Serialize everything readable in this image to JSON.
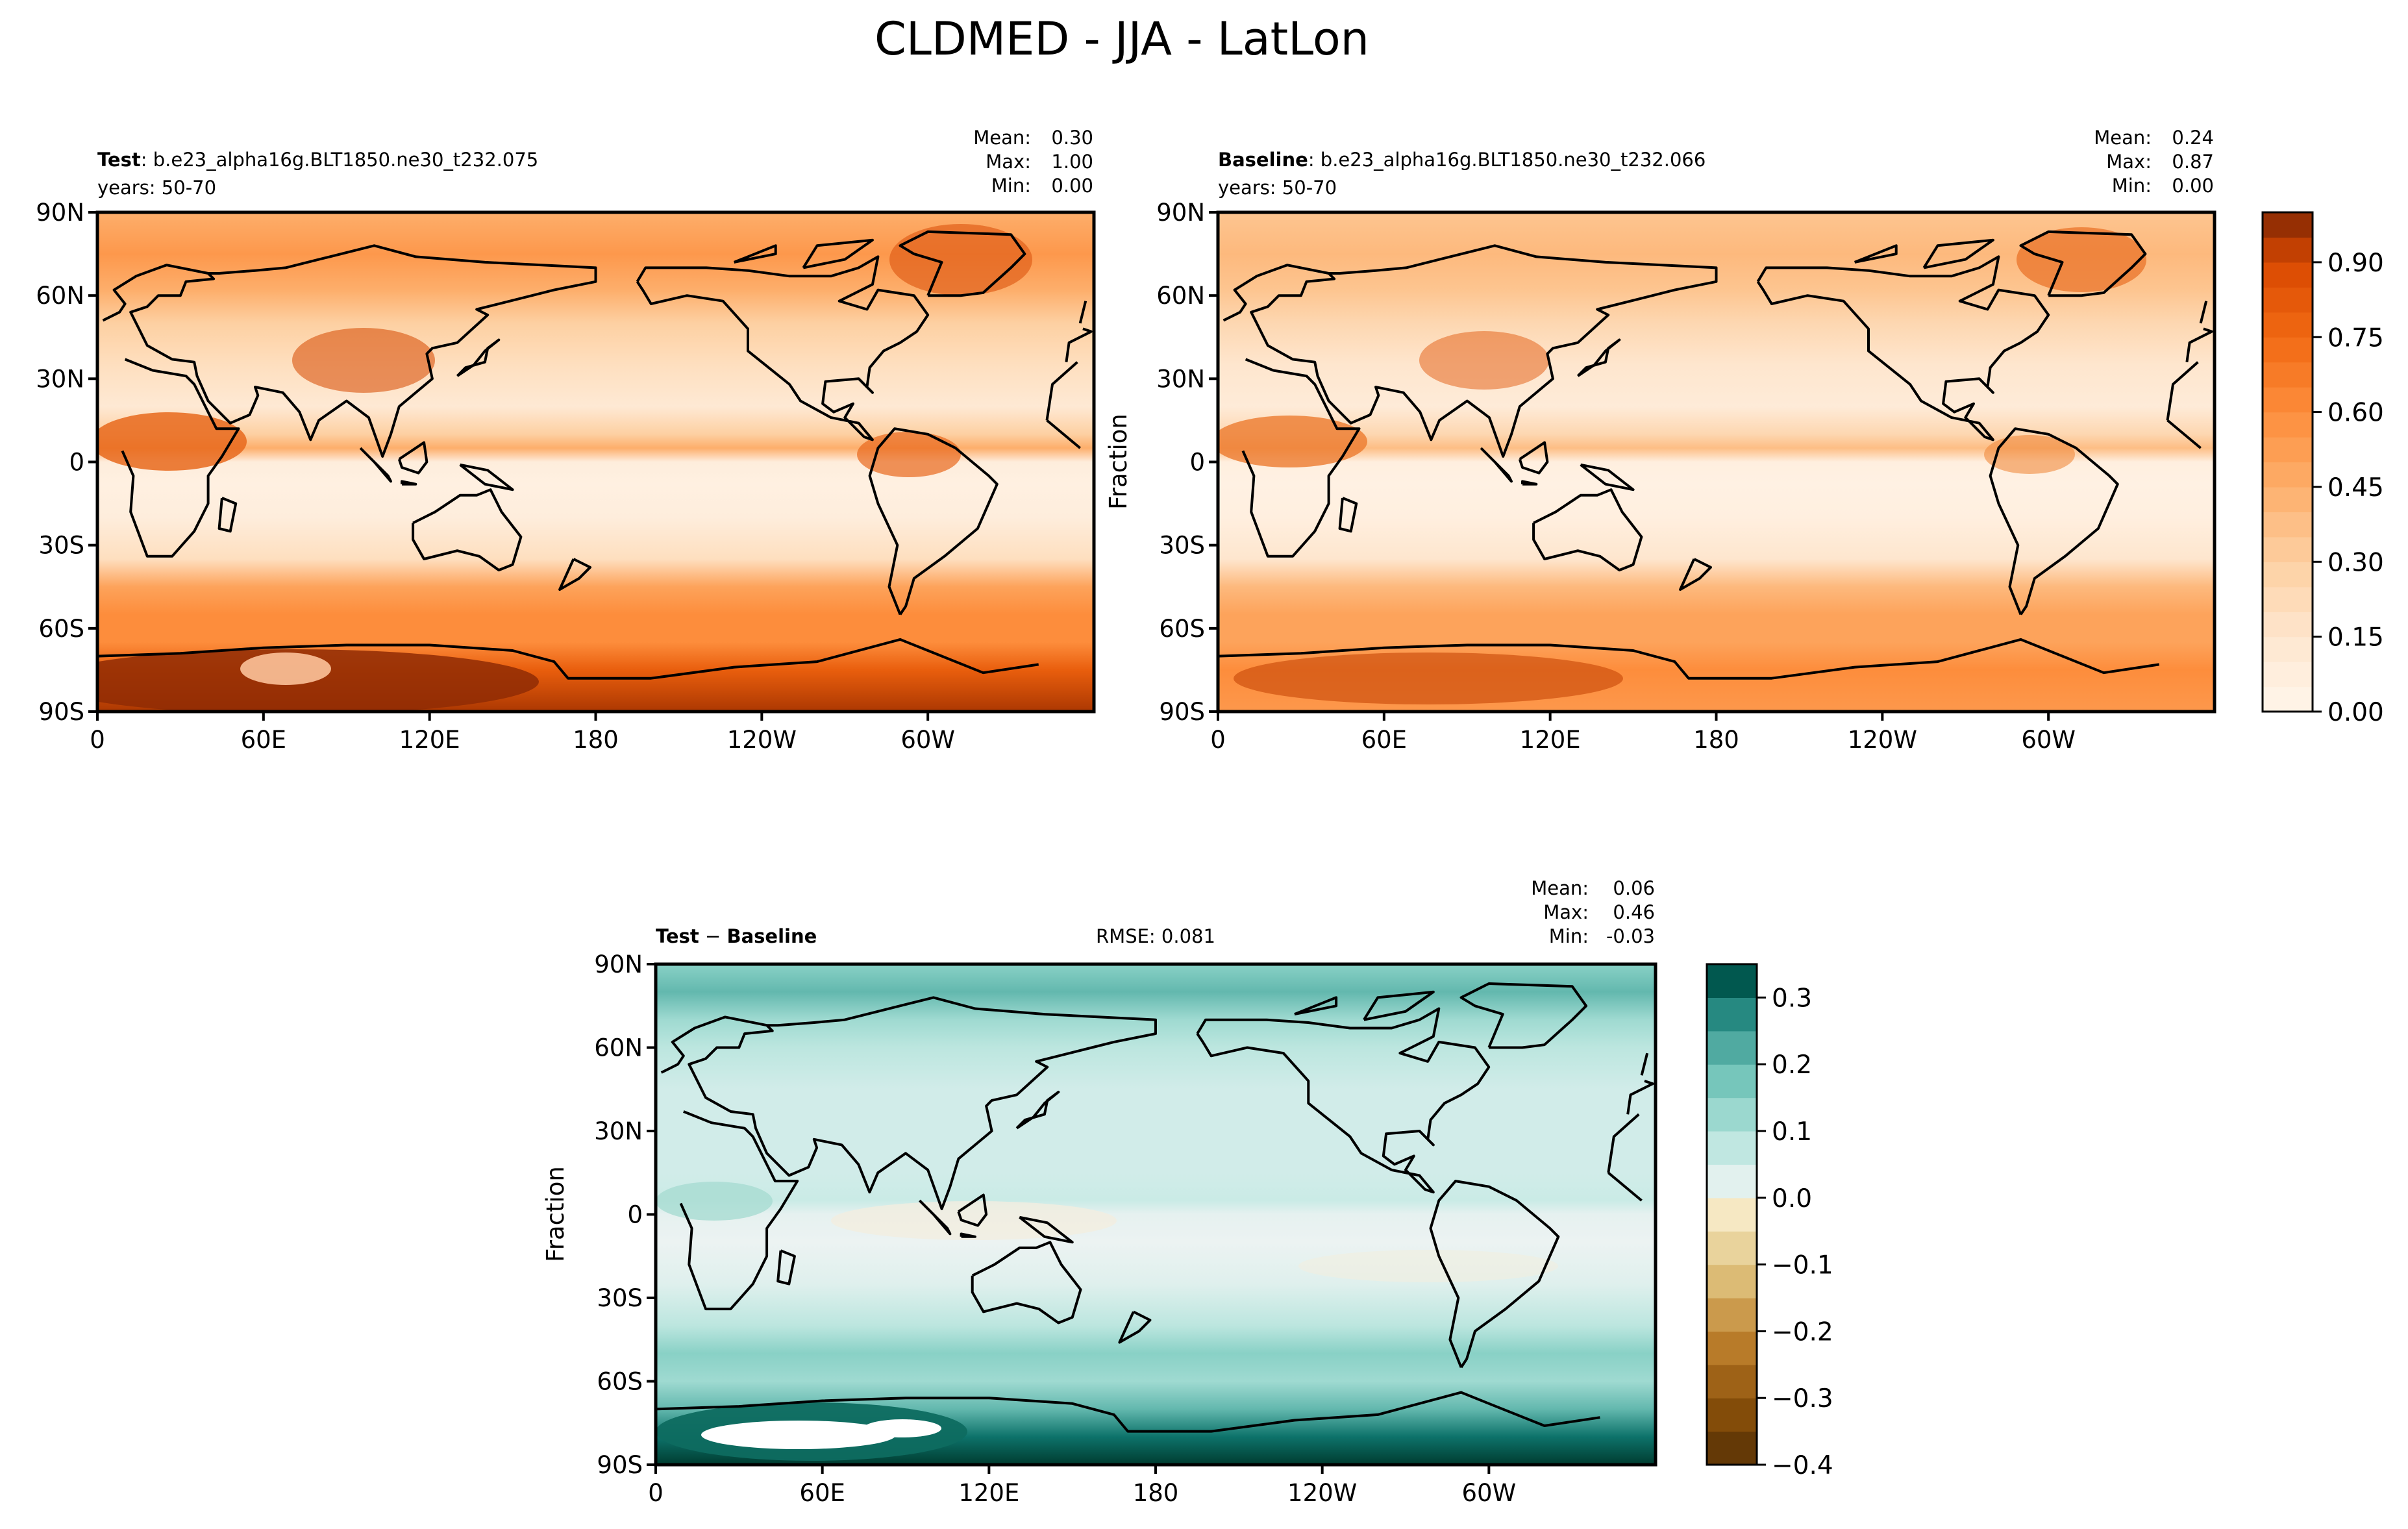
{
  "figure_title": "CLDMED - JJA - LatLon",
  "chart_data": [
    {
      "type": "heatmap",
      "id": "test",
      "label_bold": "Test",
      "label_rest": ": b.e23_alpha16g.BLT1850.ne30_t232.075",
      "years": "years: 50-70",
      "stats": [
        {
          "label": "Mean:",
          "value": "0.30"
        },
        {
          "label": "Max:",
          "value": "1.00"
        },
        {
          "label": "Min:",
          "value": "0.00"
        }
      ],
      "ylabel": "",
      "xticks": [
        "0",
        "60E",
        "120E",
        "180",
        "120W",
        "60W"
      ],
      "yticks": [
        "90N",
        "60N",
        "30N",
        "0",
        "30S",
        "60S",
        "90S"
      ],
      "xlim": [
        0,
        360
      ],
      "ylim": [
        -90,
        90
      ],
      "colormap": "Oranges",
      "value_range": [
        0.0,
        1.0
      ],
      "field_latitude_profile": {
        "lat": [
          90,
          75,
          62,
          50,
          35,
          20,
          10,
          5,
          0,
          -8,
          -20,
          -35,
          -45,
          -55,
          -65,
          -75,
          -90
        ],
        "zonal_mean_fraction": [
          0.45,
          0.55,
          0.45,
          0.3,
          0.2,
          0.12,
          0.3,
          0.45,
          0.08,
          0.05,
          0.08,
          0.2,
          0.5,
          0.6,
          0.6,
          0.8,
          0.95
        ]
      }
    },
    {
      "type": "heatmap",
      "id": "baseline",
      "label_bold": "Baseline",
      "label_rest": ": b.e23_alpha16g.BLT1850.ne30_t232.066",
      "years": "years: 50-70",
      "stats": [
        {
          "label": "Mean:",
          "value": "0.24"
        },
        {
          "label": "Max:",
          "value": "0.87"
        },
        {
          "label": "Min:",
          "value": "0.00"
        }
      ],
      "ylabel": "Fraction",
      "xticks": [
        "0",
        "60E",
        "120E",
        "180",
        "120W",
        "60W"
      ],
      "yticks": [
        "90N",
        "60N",
        "30N",
        "0",
        "30S",
        "60S",
        "90S"
      ],
      "xlim": [
        0,
        360
      ],
      "ylim": [
        -90,
        90
      ],
      "colormap": "Oranges",
      "value_range": [
        0.0,
        1.0
      ],
      "colorbar_ticks": [
        "0.00",
        "0.15",
        "0.30",
        "0.45",
        "0.60",
        "0.75",
        "0.90"
      ],
      "field_latitude_profile": {
        "lat": [
          90,
          75,
          62,
          50,
          35,
          20,
          10,
          5,
          0,
          -8,
          -20,
          -35,
          -45,
          -55,
          -65,
          -75,
          -90
        ],
        "zonal_mean_fraction": [
          0.35,
          0.4,
          0.35,
          0.25,
          0.15,
          0.1,
          0.25,
          0.38,
          0.06,
          0.04,
          0.06,
          0.15,
          0.4,
          0.5,
          0.5,
          0.6,
          0.55
        ]
      }
    },
    {
      "type": "heatmap",
      "id": "diff",
      "label_bold_left": "Test",
      "label_minus": " − ",
      "label_bold_right": "Baseline",
      "rmse": "RMSE: 0.081",
      "stats": [
        {
          "label": "Mean:",
          "value": "0.06"
        },
        {
          "label": "Max:",
          "value": "0.46"
        },
        {
          "label": "Min:",
          "value": "-0.03"
        }
      ],
      "ylabel": "Fraction",
      "xticks": [
        "0",
        "60E",
        "120E",
        "180",
        "120W",
        "60W"
      ],
      "yticks": [
        "90N",
        "60N",
        "30N",
        "0",
        "30S",
        "60S",
        "90S"
      ],
      "xlim": [
        0,
        360
      ],
      "ylim": [
        -90,
        90
      ],
      "colormap": "BrBG",
      "value_range": [
        -0.4,
        0.35
      ],
      "colorbar_ticks": [
        "−0.4",
        "−0.3",
        "−0.2",
        "−0.1",
        "0.0",
        "0.1",
        "0.2",
        "0.3"
      ],
      "field_latitude_profile": {
        "lat": [
          90,
          80,
          70,
          60,
          45,
          30,
          15,
          5,
          0,
          -10,
          -25,
          -40,
          -50,
          -60,
          -70,
          -80,
          -90
        ],
        "zonal_mean_difference": [
          0.15,
          0.2,
          0.12,
          0.08,
          0.05,
          0.05,
          0.05,
          0.06,
          0.02,
          0.01,
          0.03,
          0.08,
          0.15,
          0.12,
          0.2,
          0.3,
          0.35
        ]
      }
    }
  ]
}
